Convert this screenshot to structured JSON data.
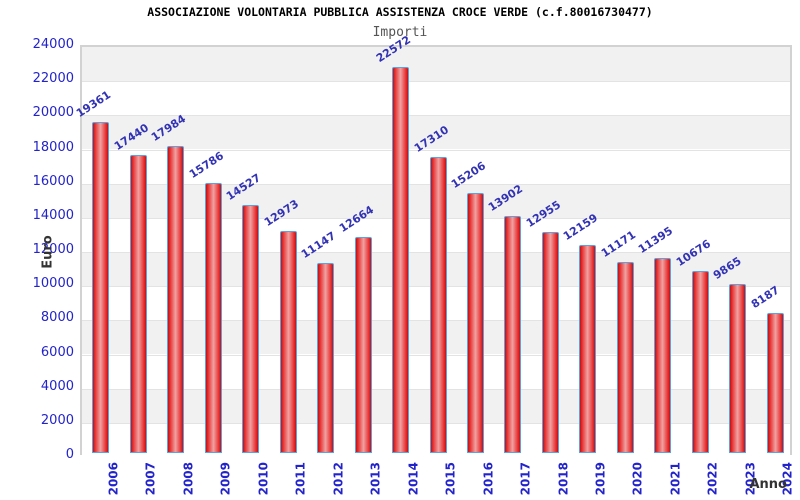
{
  "chart_data": {
    "type": "bar",
    "title": "ASSOCIAZIONE VOLONTARIA PUBBLICA ASSISTENZA CROCE VERDE (c.f.80016730477)",
    "subtitle": "Importi",
    "xlabel": "Anno",
    "ylabel": "Euro",
    "categories": [
      "2006",
      "2007",
      "2008",
      "2009",
      "2010",
      "2011",
      "2012",
      "2013",
      "2014",
      "2015",
      "2016",
      "2017",
      "2018",
      "2019",
      "2020",
      "2021",
      "2022",
      "2023",
      "2024"
    ],
    "values": [
      19361,
      17440,
      17984,
      15786,
      14527,
      12973,
      11147,
      12664,
      22572,
      17310,
      15206,
      13902,
      12955,
      12159,
      11171,
      11395,
      10676,
      9865,
      8187
    ],
    "ylim": [
      0,
      24000
    ],
    "ytick_step": 2000,
    "grid": true,
    "legend": false,
    "band_fill": "alternating gray/white horizontal bands, gray at top",
    "colors": {
      "tick_label": "#2323cc",
      "value_label": "#3232b4",
      "bar_border": "#5aa2e0",
      "bar_dark_red": "#bf1212",
      "bar_mid_red": "#e83030",
      "bar_light_center": "#f0a2a2",
      "band_gray": "#f1f1f1",
      "band_white": "#ffffff",
      "plot_border": "#d2d2d2",
      "title_color": "#000000",
      "subtitle_color": "#555555",
      "axis_title_color": "#333333"
    }
  }
}
